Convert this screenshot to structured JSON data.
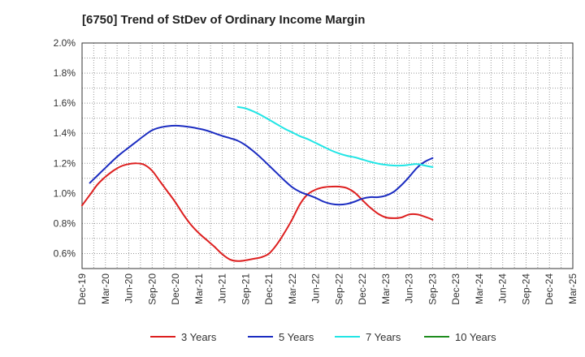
{
  "chart_data": {
    "type": "line",
    "title": "[6750]  Trend of StDev of Ordinary Income Margin",
    "xlabel": "",
    "ylabel": "",
    "x_labels": [
      "Dec-19",
      "Mar-20",
      "Jun-20",
      "Sep-20",
      "Dec-20",
      "Mar-21",
      "Jun-21",
      "Sep-21",
      "Dec-21",
      "Mar-22",
      "Jun-22",
      "Sep-22",
      "Dec-22",
      "Mar-23",
      "Jun-23",
      "Sep-23",
      "Dec-23",
      "Mar-24",
      "Jun-24",
      "Sep-24",
      "Dec-24",
      "Mar-25"
    ],
    "y_ticks": [
      "0.6%",
      "0.8%",
      "1.0%",
      "1.2%",
      "1.4%",
      "1.6%",
      "1.8%",
      "2.0%"
    ],
    "ylim": [
      0.5,
      2.0
    ],
    "grid": true,
    "legend_position": "bottom",
    "series": [
      {
        "name": "3 Years",
        "color": "#dd1f1f",
        "values": [
          0.92,
          0.99,
          1.06,
          1.11,
          1.15,
          1.18,
          1.195,
          1.2,
          1.19,
          1.15,
          1.08,
          1.01,
          0.94,
          0.86,
          0.79,
          0.735,
          0.69,
          0.645,
          0.595,
          0.56,
          0.55,
          0.555,
          0.565,
          0.575,
          0.6,
          0.66,
          0.74,
          0.83,
          0.93,
          0.995,
          1.025,
          1.04,
          1.045,
          1.045,
          1.035,
          1.005,
          0.955,
          0.905,
          0.865,
          0.84,
          0.835,
          0.84,
          0.86,
          0.86,
          0.845,
          0.825
        ]
      },
      {
        "name": "5 Years",
        "color": "#1b2cc1",
        "values": [
          null,
          1.07,
          1.12,
          1.17,
          1.22,
          1.265,
          1.305,
          1.345,
          1.385,
          1.42,
          1.438,
          1.447,
          1.45,
          1.447,
          1.44,
          1.43,
          1.418,
          1.4,
          1.382,
          1.367,
          1.35,
          1.32,
          1.28,
          1.235,
          1.185,
          1.135,
          1.085,
          1.04,
          1.01,
          0.99,
          0.97,
          0.945,
          0.93,
          0.925,
          0.93,
          0.945,
          0.965,
          0.975,
          0.975,
          0.985,
          1.01,
          1.055,
          1.11,
          1.17,
          1.21,
          1.235
        ]
      },
      {
        "name": "7 Years",
        "color": "#22e5e5",
        "values": [
          null,
          null,
          null,
          null,
          null,
          null,
          null,
          null,
          null,
          null,
          null,
          null,
          null,
          null,
          null,
          null,
          null,
          null,
          null,
          null,
          1.575,
          1.565,
          1.545,
          1.52,
          1.49,
          1.46,
          1.43,
          1.405,
          1.38,
          1.36,
          1.335,
          1.31,
          1.285,
          1.265,
          1.25,
          1.24,
          1.225,
          1.21,
          1.198,
          1.19,
          1.185,
          1.185,
          1.19,
          1.195,
          1.185,
          1.175
        ]
      },
      {
        "name": "10 Years",
        "color": "#1e8c1e",
        "values": []
      }
    ]
  }
}
